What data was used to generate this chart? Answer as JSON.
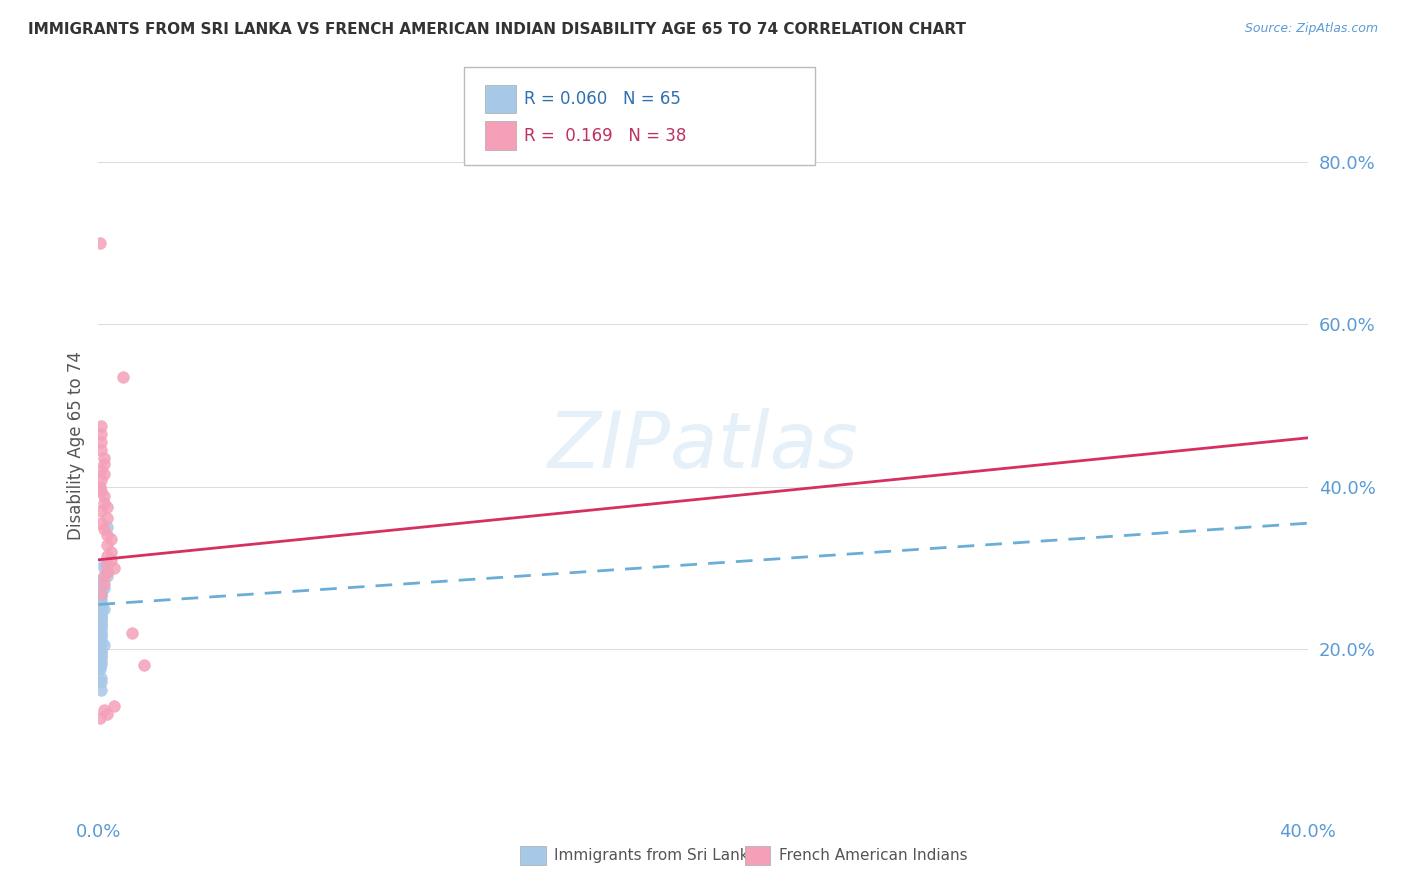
{
  "title": "IMMIGRANTS FROM SRI LANKA VS FRENCH AMERICAN INDIAN DISABILITY AGE 65 TO 74 CORRELATION CHART",
  "source": "Source: ZipAtlas.com",
  "ylabel": "Disability Age 65 to 74",
  "watermark": "ZIPatlas",
  "bottom_legend": {
    "series1": "Immigrants from Sri Lanka",
    "series2": "French American Indians"
  },
  "series1": {
    "color": "#a8c8e8",
    "trend_color": "#6aaed6",
    "trend_style": "--",
    "label_R": "0.060",
    "label_N": "65",
    "trend_x0": 0.0,
    "trend_y0": 0.255,
    "trend_x1": 0.4,
    "trend_y1": 0.355,
    "x": [
      0.0005,
      0.001,
      0.0005,
      0.001,
      0.002,
      0.001,
      0.001,
      0.0005,
      0.0008,
      0.001,
      0.001,
      0.0005,
      0.0003,
      0.001,
      0.0005,
      0.001,
      0.002,
      0.001,
      0.0003,
      0.0005,
      0.001,
      0.0008,
      0.0005,
      0.001,
      0.0003,
      0.001,
      0.0005,
      0.001,
      0.001,
      0.0005,
      0.001,
      0.0008,
      0.001,
      0.0005,
      0.001,
      0.001,
      0.0003,
      0.0005,
      0.001,
      0.001,
      0.0005,
      0.001,
      0.0003,
      0.001,
      0.001,
      0.002,
      0.0005,
      0.001,
      0.0008,
      0.001,
      0.001,
      0.0005,
      0.001,
      0.001,
      0.0005,
      0.003,
      0.002,
      0.002,
      0.003,
      0.003,
      0.0003,
      0.0005,
      0.001,
      0.001,
      0.001
    ],
    "y": [
      0.285,
      0.28,
      0.275,
      0.275,
      0.275,
      0.27,
      0.27,
      0.265,
      0.265,
      0.26,
      0.255,
      0.255,
      0.255,
      0.25,
      0.25,
      0.25,
      0.25,
      0.25,
      0.248,
      0.245,
      0.245,
      0.245,
      0.244,
      0.244,
      0.242,
      0.24,
      0.24,
      0.24,
      0.238,
      0.235,
      0.235,
      0.232,
      0.23,
      0.23,
      0.228,
      0.225,
      0.225,
      0.222,
      0.22,
      0.218,
      0.216,
      0.215,
      0.212,
      0.21,
      0.208,
      0.205,
      0.2,
      0.198,
      0.195,
      0.192,
      0.19,
      0.188,
      0.185,
      0.182,
      0.18,
      0.35,
      0.305,
      0.3,
      0.295,
      0.29,
      0.178,
      0.175,
      0.165,
      0.16,
      0.15
    ]
  },
  "series2": {
    "color": "#f4a0b8",
    "trend_color": "#d63060",
    "trend_style": "-",
    "label_R": "0.169",
    "label_N": "38",
    "trend_x0": 0.0,
    "trend_y0": 0.31,
    "trend_x1": 0.4,
    "trend_y1": 0.46,
    "x": [
      0.0005,
      0.001,
      0.001,
      0.0008,
      0.001,
      0.002,
      0.002,
      0.001,
      0.002,
      0.001,
      0.0005,
      0.001,
      0.002,
      0.002,
      0.003,
      0.001,
      0.003,
      0.001,
      0.002,
      0.003,
      0.004,
      0.003,
      0.004,
      0.003,
      0.004,
      0.003,
      0.005,
      0.003,
      0.002,
      0.002,
      0.001,
      0.008,
      0.011,
      0.015,
      0.005,
      0.002,
      0.003,
      0.0005
    ],
    "y": [
      0.7,
      0.475,
      0.465,
      0.455,
      0.445,
      0.435,
      0.428,
      0.42,
      0.415,
      0.408,
      0.4,
      0.395,
      0.388,
      0.38,
      0.375,
      0.37,
      0.362,
      0.355,
      0.348,
      0.34,
      0.335,
      0.328,
      0.32,
      0.315,
      0.31,
      0.305,
      0.3,
      0.295,
      0.29,
      0.28,
      0.268,
      0.535,
      0.22,
      0.18,
      0.13,
      0.125,
      0.12,
      0.115
    ]
  },
  "xlim": [
    0.0,
    0.4
  ],
  "ylim": [
    0.0,
    0.9
  ],
  "xticks": [
    0.0,
    0.05,
    0.1,
    0.15,
    0.2,
    0.25,
    0.3,
    0.35,
    0.4
  ],
  "yticks_right": [
    0.2,
    0.4,
    0.6,
    0.8
  ],
  "ytick_labels": [
    "20.0%",
    "40.0%",
    "60.0%",
    "80.0%"
  ],
  "background_color": "#ffffff",
  "grid_color": "#dddddd"
}
